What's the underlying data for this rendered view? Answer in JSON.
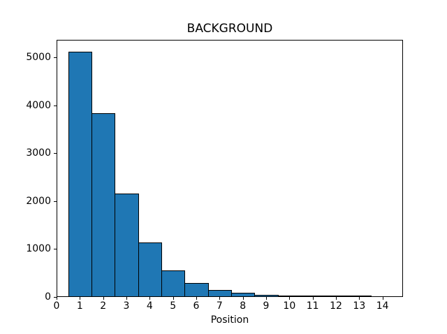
{
  "figure": {
    "background_color": "#ffffff"
  },
  "chart_data": {
    "type": "bar",
    "title": "BACKGROUND",
    "xlabel": "Position",
    "ylabel": "",
    "categories": [
      1,
      2,
      3,
      4,
      5,
      6,
      7,
      8,
      9,
      10,
      11,
      12,
      13
    ],
    "values": [
      5110,
      3820,
      2145,
      1130,
      540,
      275,
      135,
      78,
      35,
      17,
      8,
      4,
      2
    ],
    "bar_width": 1.0,
    "bar_color": "#1f77b4",
    "bar_edge_color": "#000000",
    "x_ticks": [
      0,
      1,
      2,
      3,
      4,
      5,
      6,
      7,
      8,
      9,
      10,
      11,
      12,
      13,
      14
    ],
    "y_ticks": [
      0,
      1000,
      2000,
      3000,
      4000,
      5000
    ],
    "xlim": [
      0,
      14.88
    ],
    "ylim": [
      0,
      5365
    ],
    "grid": false,
    "legend": null,
    "axis_color": "#000000"
  }
}
